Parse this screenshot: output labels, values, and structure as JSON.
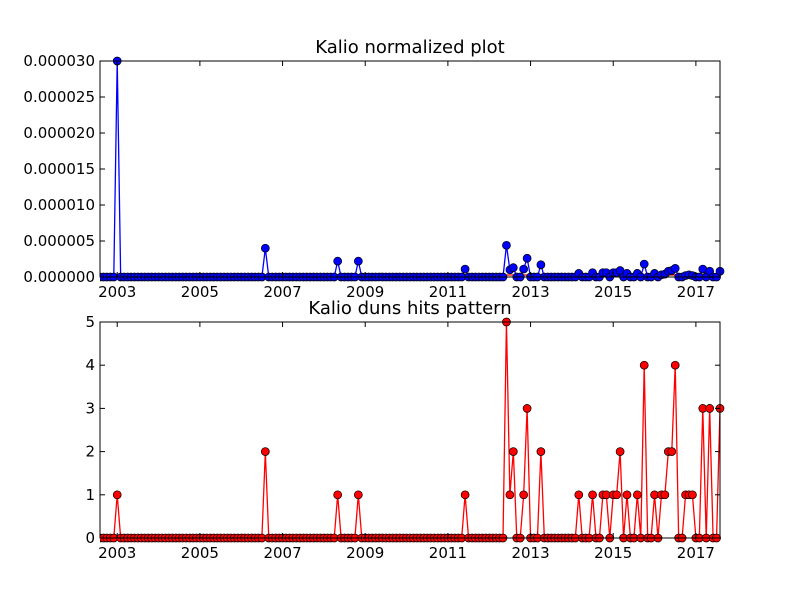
{
  "chart_data": [
    {
      "type": "line",
      "title": "Kalio normalized plot",
      "xlabel": "",
      "ylabel": "",
      "x_range": [
        "2002-08",
        "2017-08"
      ],
      "xticks": [
        "2003",
        "2005",
        "2007",
        "2009",
        "2011",
        "2013",
        "2015",
        "2017"
      ],
      "ylim": [
        0,
        3e-05
      ],
      "yticks": [
        "0.000000",
        "0.000005",
        "0.000010",
        "0.000015",
        "0.000020",
        "0.000025",
        "0.000030"
      ],
      "grid": false,
      "legend": "none",
      "series": [
        {
          "color": "#0000ff",
          "marker": "circle",
          "baseline_color": "#ff0000",
          "nonzero_points": [
            {
              "x": "2003-01",
              "y": 3e-05
            },
            {
              "x": "2006-08",
              "y": 4e-06
            },
            {
              "x": "2008-05",
              "y": 2.2e-06
            },
            {
              "x": "2008-11",
              "y": 2.2e-06
            },
            {
              "x": "2011-06",
              "y": 1.1e-06
            },
            {
              "x": "2012-06",
              "y": 4.4e-06
            },
            {
              "x": "2012-07",
              "y": 1e-06
            },
            {
              "x": "2012-08",
              "y": 1.3e-06
            },
            {
              "x": "2012-11",
              "y": 1.1e-06
            },
            {
              "x": "2012-12",
              "y": 2.6e-06
            },
            {
              "x": "2013-04",
              "y": 1.7e-06
            },
            {
              "x": "2014-03",
              "y": 5e-07
            },
            {
              "x": "2014-07",
              "y": 6e-07
            },
            {
              "x": "2014-10",
              "y": 6e-07
            },
            {
              "x": "2014-11",
              "y": 6e-07
            },
            {
              "x": "2015-01",
              "y": 6e-07
            },
            {
              "x": "2015-02",
              "y": 6e-07
            },
            {
              "x": "2015-03",
              "y": 9e-07
            },
            {
              "x": "2015-05",
              "y": 5e-07
            },
            {
              "x": "2015-08",
              "y": 5e-07
            },
            {
              "x": "2015-10",
              "y": 1.8e-06
            },
            {
              "x": "2016-01",
              "y": 5e-07
            },
            {
              "x": "2016-03",
              "y": 3e-07
            },
            {
              "x": "2016-04",
              "y": 4e-07
            },
            {
              "x": "2016-05",
              "y": 8e-07
            },
            {
              "x": "2016-06",
              "y": 9e-07
            },
            {
              "x": "2016-07",
              "y": 1.2e-06
            },
            {
              "x": "2016-10",
              "y": 2e-07
            },
            {
              "x": "2016-11",
              "y": 3e-07
            },
            {
              "x": "2016-12",
              "y": 2e-07
            },
            {
              "x": "2017-03",
              "y": 1.1e-06
            },
            {
              "x": "2017-05",
              "y": 8e-07
            },
            {
              "x": "2017-08",
              "y": 8e-07
            }
          ]
        }
      ]
    },
    {
      "type": "line",
      "title": "Kalio duns hits pattern",
      "xlabel": "",
      "ylabel": "",
      "x_range": [
        "2002-08",
        "2017-08"
      ],
      "xticks": [
        "2003",
        "2005",
        "2007",
        "2009",
        "2011",
        "2013",
        "2015",
        "2017"
      ],
      "ylim": [
        0,
        5
      ],
      "yticks": [
        "0",
        "1",
        "2",
        "3",
        "4",
        "5"
      ],
      "grid": false,
      "legend": "none",
      "series": [
        {
          "color": "#ff0000",
          "marker": "circle",
          "nonzero_points": [
            {
              "x": "2003-01",
              "y": 1
            },
            {
              "x": "2006-08",
              "y": 2
            },
            {
              "x": "2008-05",
              "y": 1
            },
            {
              "x": "2008-11",
              "y": 1
            },
            {
              "x": "2011-06",
              "y": 1
            },
            {
              "x": "2012-06",
              "y": 5
            },
            {
              "x": "2012-07",
              "y": 1
            },
            {
              "x": "2012-08",
              "y": 2
            },
            {
              "x": "2012-11",
              "y": 1
            },
            {
              "x": "2012-12",
              "y": 3
            },
            {
              "x": "2013-04",
              "y": 2
            },
            {
              "x": "2014-03",
              "y": 1
            },
            {
              "x": "2014-07",
              "y": 1
            },
            {
              "x": "2014-10",
              "y": 1
            },
            {
              "x": "2014-11",
              "y": 1
            },
            {
              "x": "2015-01",
              "y": 1
            },
            {
              "x": "2015-02",
              "y": 1
            },
            {
              "x": "2015-03",
              "y": 2
            },
            {
              "x": "2015-05",
              "y": 1
            },
            {
              "x": "2015-08",
              "y": 1
            },
            {
              "x": "2015-10",
              "y": 4
            },
            {
              "x": "2016-01",
              "y": 1
            },
            {
              "x": "2016-03",
              "y": 1
            },
            {
              "x": "2016-04",
              "y": 1
            },
            {
              "x": "2016-05",
              "y": 2
            },
            {
              "x": "2016-06",
              "y": 2
            },
            {
              "x": "2016-07",
              "y": 4
            },
            {
              "x": "2016-10",
              "y": 1
            },
            {
              "x": "2016-11",
              "y": 1
            },
            {
              "x": "2016-12",
              "y": 1
            },
            {
              "x": "2017-03",
              "y": 3
            },
            {
              "x": "2017-05",
              "y": 3
            },
            {
              "x": "2017-08",
              "y": 3
            }
          ]
        }
      ]
    }
  ]
}
